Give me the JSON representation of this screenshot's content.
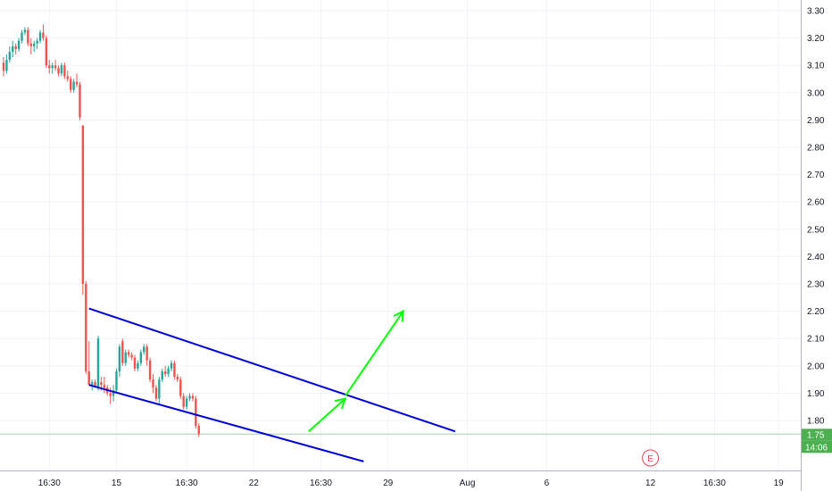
{
  "chart_data": {
    "type": "candlestick",
    "title": "",
    "xlabel": "",
    "ylabel": "",
    "ylim": [
      1.7,
      3.33
    ],
    "y_ticks": [
      "3.30",
      "3.20",
      "3.10",
      "3.00",
      "2.90",
      "2.80",
      "2.70",
      "2.60",
      "2.50",
      "2.40",
      "2.30",
      "2.20",
      "2.10",
      "2.00",
      "1.90",
      "1.80"
    ],
    "x_ticks": [
      "16:30",
      "15",
      "16:30",
      "22",
      "16:30",
      "29",
      "Aug",
      "6",
      "12",
      "16:30",
      "19"
    ],
    "x_tick_bar_index": [
      15,
      37,
      60,
      82,
      104,
      126,
      152,
      178,
      212,
      233,
      254
    ],
    "grid": true,
    "up_color": "#26a69a",
    "down_color": "#ef5350",
    "ohlc": [
      [
        3.11,
        3.13,
        3.06,
        3.08
      ],
      [
        3.08,
        3.14,
        3.07,
        3.12
      ],
      [
        3.12,
        3.17,
        3.11,
        3.15
      ],
      [
        3.15,
        3.19,
        3.13,
        3.17
      ],
      [
        3.17,
        3.18,
        3.14,
        3.16
      ],
      [
        3.16,
        3.2,
        3.15,
        3.19
      ],
      [
        3.19,
        3.23,
        3.18,
        3.22
      ],
      [
        3.22,
        3.24,
        3.21,
        3.23
      ],
      [
        3.23,
        3.24,
        3.17,
        3.18
      ],
      [
        3.18,
        3.2,
        3.14,
        3.17
      ],
      [
        3.17,
        3.19,
        3.15,
        3.18
      ],
      [
        3.18,
        3.2,
        3.16,
        3.19
      ],
      [
        3.19,
        3.23,
        3.18,
        3.22
      ],
      [
        3.22,
        3.25,
        3.19,
        3.2
      ],
      [
        3.2,
        3.21,
        3.09,
        3.1
      ],
      [
        3.1,
        3.12,
        3.07,
        3.09
      ],
      [
        3.09,
        3.11,
        3.07,
        3.1
      ],
      [
        3.1,
        3.12,
        3.08,
        3.09
      ],
      [
        3.09,
        3.1,
        3.06,
        3.07
      ],
      [
        3.07,
        3.11,
        3.06,
        3.1
      ],
      [
        3.1,
        3.11,
        3.05,
        3.06
      ],
      [
        3.06,
        3.08,
        3.04,
        3.05
      ],
      [
        3.05,
        3.06,
        3.0,
        3.01
      ],
      [
        3.01,
        3.05,
        3.0,
        3.04
      ],
      [
        3.04,
        3.07,
        3.02,
        3.03
      ],
      [
        3.03,
        3.04,
        2.9,
        2.91
      ],
      [
        2.88,
        2.88,
        2.26,
        2.3
      ],
      [
        2.3,
        2.31,
        1.97,
        1.98
      ],
      [
        1.98,
        2.09,
        1.93,
        1.93
      ],
      [
        1.93,
        1.95,
        1.91,
        1.94
      ],
      [
        1.94,
        1.95,
        1.92,
        1.92
      ],
      [
        1.92,
        2.11,
        1.91,
        2.1
      ],
      [
        1.94,
        1.96,
        1.91,
        1.93
      ],
      [
        1.93,
        1.96,
        1.9,
        1.92
      ],
      [
        1.92,
        1.93,
        1.89,
        1.9
      ],
      [
        1.9,
        1.92,
        1.86,
        1.89
      ],
      [
        1.89,
        1.93,
        1.87,
        1.91
      ],
      [
        1.91,
        1.99,
        1.9,
        1.98
      ],
      [
        1.98,
        2.08,
        1.96,
        2.07
      ],
      [
        2.09,
        2.1,
        2.0,
        2.01
      ],
      [
        2.01,
        2.06,
        2.0,
        2.05
      ],
      [
        2.05,
        2.06,
        2.03,
        2.04
      ],
      [
        2.04,
        2.05,
        2.02,
        2.03
      ],
      [
        2.03,
        2.04,
        1.98,
        1.99
      ],
      [
        1.99,
        2.02,
        1.98,
        2.01
      ],
      [
        2.01,
        2.06,
        2.0,
        2.05
      ],
      [
        2.05,
        2.08,
        2.04,
        2.07
      ],
      [
        2.07,
        2.08,
        2.0,
        2.02
      ],
      [
        2.02,
        2.03,
        1.94,
        1.95
      ],
      [
        1.95,
        1.97,
        1.9,
        1.92
      ],
      [
        1.92,
        1.93,
        1.87,
        1.88
      ],
      [
        1.88,
        1.96,
        1.86,
        1.95
      ],
      [
        1.95,
        1.99,
        1.94,
        1.98
      ],
      [
        1.98,
        2.0,
        1.96,
        1.97
      ],
      [
        1.97,
        2.0,
        1.96,
        1.99
      ],
      [
        1.99,
        2.02,
        1.98,
        2.01
      ],
      [
        2.01,
        2.02,
        1.95,
        1.96
      ],
      [
        1.96,
        1.97,
        1.94,
        1.95
      ],
      [
        1.95,
        1.96,
        1.88,
        1.89
      ],
      [
        1.89,
        1.9,
        1.84,
        1.85
      ],
      [
        1.85,
        1.89,
        1.84,
        1.88
      ],
      [
        1.88,
        1.9,
        1.87,
        1.89
      ],
      [
        1.89,
        1.9,
        1.87,
        1.88
      ],
      [
        1.88,
        1.89,
        1.77,
        1.78
      ],
      [
        1.78,
        1.79,
        1.74,
        1.75
      ]
    ],
    "trend_lines": [
      {
        "from": [
          28,
          2.21
        ],
        "to": [
          148,
          1.76
        ],
        "color": "#0000d6"
      },
      {
        "from": [
          28,
          1.93
        ],
        "to": [
          118,
          1.65
        ],
        "color": "#0000d6"
      }
    ],
    "arrows": [
      {
        "from": [
          100,
          1.76
        ],
        "to": [
          112,
          1.88
        ],
        "color": "#00ff00"
      },
      {
        "from": [
          112,
          1.89
        ],
        "to": [
          131,
          2.2
        ],
        "color": "#00ff00"
      }
    ],
    "last_price_label": "1.75",
    "last_price_value": 1.75,
    "countdown_label": "14:06",
    "event_marker": {
      "label": "E",
      "bar_index": 212
    }
  }
}
